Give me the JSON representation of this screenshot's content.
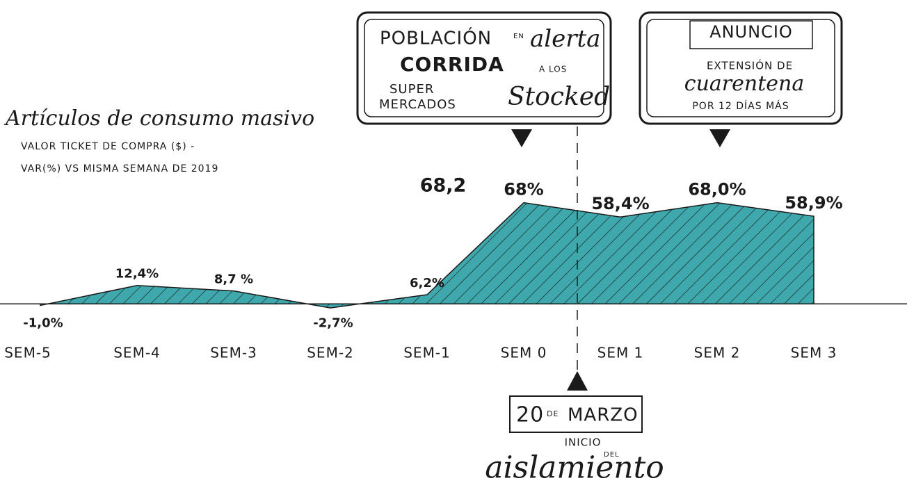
{
  "chart_data": {
    "type": "area",
    "title": "Artículos de consumo masivo",
    "subtitle": [
      "VALOR TICKET DE COMPRA ($) -",
      "VAR(%) VS MISMA SEMANA DE 2019"
    ],
    "categories": [
      "SEM-5",
      "SEM-4",
      "SEM-3",
      "SEM-2",
      "SEM-1",
      "SEM 0",
      "SEM 1",
      "SEM 2",
      "SEM 3"
    ],
    "values": [
      -1.0,
      12.4,
      8.7,
      -2.7,
      6.2,
      68,
      58.4,
      68.0,
      58.9
    ],
    "value_labels": [
      "-1,0%",
      "12,4%",
      "8,7 %",
      "-2,7%",
      "6,2%",
      "68%",
      "58,4%",
      "68,0%",
      "58,9%"
    ],
    "color": "#3ea8ad",
    "ylim": [
      -5,
      80
    ],
    "annotations": {
      "extra_label": "68,2",
      "box_alerta": [
        "POBLACIÓN",
        "EN",
        "alerta",
        "CORRIDA",
        "A LOS",
        "SUPER",
        "MERCADOS",
        "Stocked"
      ],
      "box_anuncio": [
        "ANUNCIO",
        "EXTENSIÓN DE",
        "cuarentena",
        "POR 12 DÍAS MÁS"
      ],
      "box_marzo": [
        "20",
        "DE",
        "MARZO",
        "INICIO",
        "DEL",
        "aislamiento"
      ]
    }
  }
}
